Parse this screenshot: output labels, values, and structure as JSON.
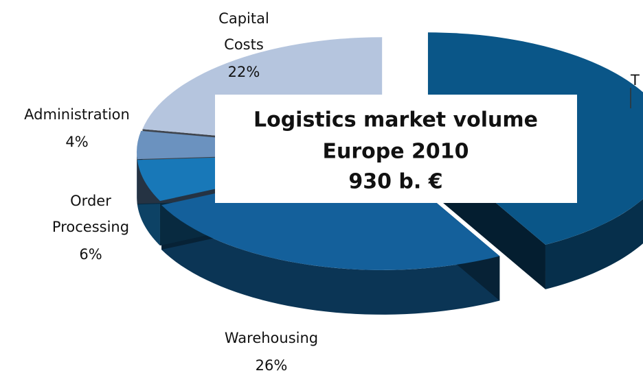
{
  "chart_data": {
    "type": "pie3d",
    "title": "Logistics market volume",
    "subtitle": "Europe 2010",
    "annotation": "930 b. €",
    "categories": [
      "T",
      "Warehousing",
      "Order Processing",
      "Administration",
      "Capital Costs"
    ],
    "values": [
      42,
      26,
      6,
      4,
      22
    ],
    "value_labels": [
      null,
      "26%",
      "6%",
      "4%",
      "22%"
    ],
    "colors": [
      "#0a5688",
      "#14609b",
      "#1878b8",
      "#6b92bf",
      "#b5c5de"
    ]
  }
}
